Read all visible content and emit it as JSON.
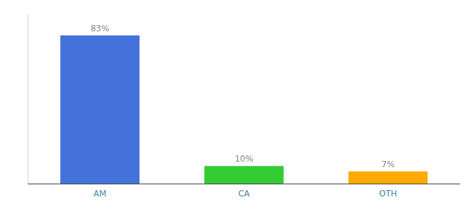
{
  "chart_data": {
    "type": "bar",
    "categories": [
      "AM",
      "CA",
      "OTH"
    ],
    "values": [
      83,
      10,
      7
    ],
    "value_labels": [
      "83%",
      "10%",
      "7%"
    ],
    "colors": [
      "#4472db",
      "#33cc33",
      "#ffaa00"
    ],
    "ylim": [
      0,
      95
    ],
    "grid": false,
    "data_labels": true,
    "tick_labels": "x"
  }
}
